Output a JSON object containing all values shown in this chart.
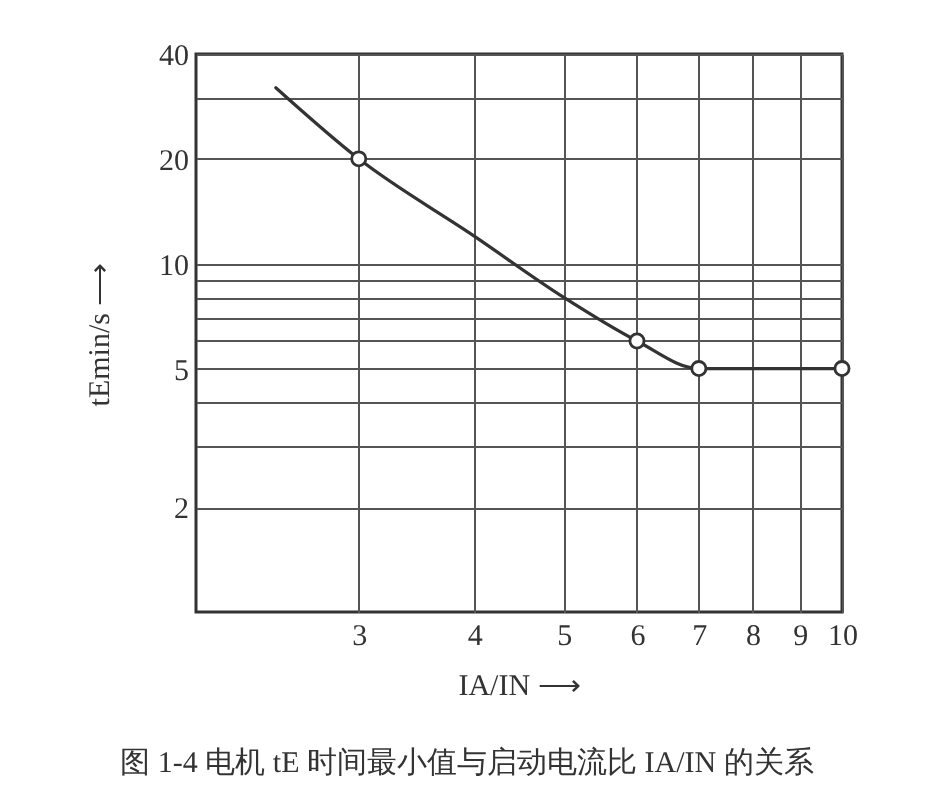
{
  "chart_data": {
    "type": "line",
    "title": "图 1-4  电机 tE 时间最小值与启动电流比 IA/IN 的关系",
    "xlabel": "IA/IN ⟶",
    "ylabel": "tEmin/s ⟶",
    "series": [
      {
        "color": "#333333",
        "marker": "none",
        "x": [
          2.44,
          3,
          4,
          5,
          6,
          7,
          10
        ],
        "values": [
          32,
          20,
          12,
          8,
          6,
          5,
          5
        ]
      },
      {
        "type": "scatter",
        "color": "#333333",
        "marker": "circle",
        "x": [
          3,
          6,
          7,
          10
        ],
        "values": [
          20,
          6,
          5,
          5
        ]
      }
    ],
    "xlim": [
      2,
      10
    ],
    "ylim": [
      1,
      40
    ],
    "xticks": [
      3,
      4,
      5,
      6,
      7,
      8,
      9,
      10
    ],
    "yticks": [
      2,
      {
        "value": 3,
        "label": null
      },
      {
        "value": 4,
        "label": null
      },
      5,
      {
        "value": 6,
        "label": null
      },
      {
        "value": 7,
        "label": null
      },
      {
        "value": 8,
        "label": null
      },
      {
        "value": 9,
        "label": null
      },
      10,
      20,
      {
        "value": 30,
        "label": null
      },
      40
    ],
    "log": "xy",
    "grid": true
  }
}
